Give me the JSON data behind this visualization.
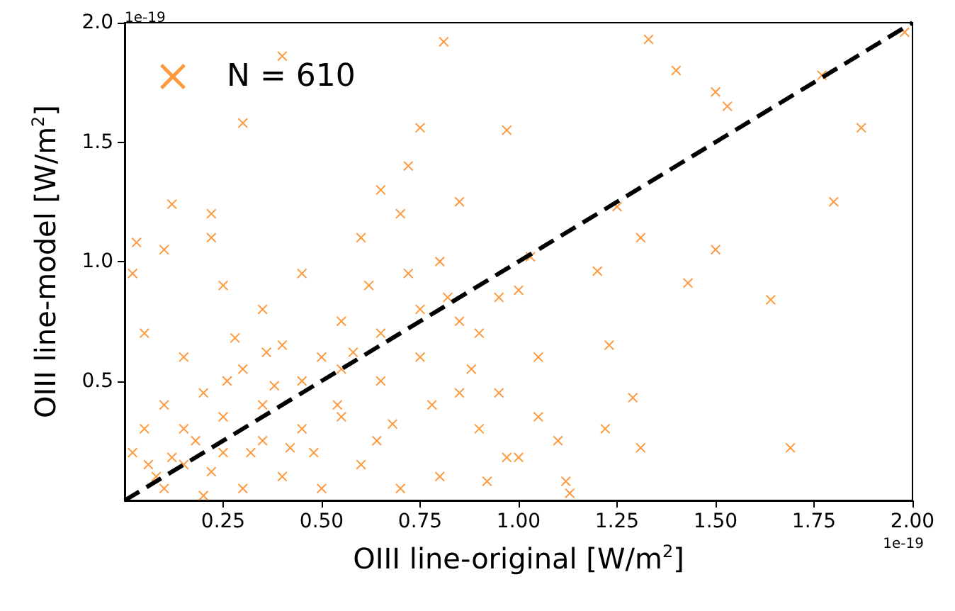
{
  "chart_data": {
    "type": "scatter",
    "xlabel": "OIII line-original [W/m$^{2}$]",
    "ylabel": "OIII line-model [W/m$^{2}$]",
    "annotations": [
      "1e-19",
      "1e-19"
    ],
    "xlim": [
      0,
      2.0
    ],
    "ylim": [
      0,
      2.0
    ],
    "xticks": [
      {
        "value": 0.25,
        "label": "0.25"
      },
      {
        "value": 0.5,
        "label": "0.50"
      },
      {
        "value": 0.75,
        "label": "0.75"
      },
      {
        "value": 1.0,
        "label": "1.00"
      },
      {
        "value": 1.25,
        "label": "1.25"
      },
      {
        "value": 1.5,
        "label": "1.50"
      },
      {
        "value": 1.75,
        "label": "1.75"
      },
      {
        "value": 2.0,
        "label": "2.00"
      }
    ],
    "yticks": [
      0.5,
      {
        "value": 1.0,
        "label": "1.0"
      },
      1.5,
      {
        "value": 2.0,
        "label": "2.0"
      }
    ],
    "grid": false,
    "legend": "top left",
    "marker": "cross",
    "series": [
      {
        "name": "N = 610",
        "color": "#ff7f0e",
        "x": [
          0.81,
          1.33,
          1.4,
          1.5,
          1.53,
          1.77,
          1.98,
          1.87,
          1.8,
          1.69,
          1.64,
          1.5,
          1.43,
          1.31,
          1.25,
          1.2,
          1.23,
          1.29,
          1.31,
          1.22,
          1.12,
          1.13,
          1.1,
          1.05,
          0.97,
          0.9,
          0.85,
          1.0,
          1.03,
          0.97,
          0.75,
          0.65,
          0.72,
          0.4,
          0.3,
          0.22,
          0.12,
          0.03,
          0.02,
          0.1,
          0.22,
          0.25,
          0.35,
          0.45,
          0.6,
          0.7,
          0.8,
          0.85,
          0.95,
          0.55,
          0.5,
          0.4,
          0.3,
          0.2,
          0.1,
          0.05,
          0.02,
          0.08,
          0.15,
          0.25,
          0.35,
          0.45,
          0.55,
          0.65,
          0.75,
          0.85,
          0.6,
          0.7,
          0.8,
          0.9,
          0.5,
          0.4,
          0.3,
          0.2,
          0.1,
          0.15,
          0.25,
          0.35,
          0.45,
          0.55,
          0.65,
          0.75,
          0.05,
          0.15,
          0.28,
          0.38,
          0.48,
          0.58,
          0.68,
          0.78,
          0.88,
          0.95,
          0.18,
          0.12,
          0.22,
          0.32,
          0.42,
          0.06,
          0.26,
          0.36,
          0.62,
          0.72,
          0.82,
          1.0,
          1.05,
          0.92,
          0.64,
          0.54
        ],
        "values": [
          1.92,
          1.93,
          1.8,
          1.71,
          1.65,
          1.78,
          1.96,
          1.56,
          1.25,
          0.22,
          0.84,
          1.05,
          0.91,
          1.1,
          1.23,
          0.96,
          0.65,
          0.43,
          0.22,
          0.3,
          0.08,
          0.03,
          0.25,
          0.6,
          0.18,
          0.7,
          0.45,
          0.88,
          1.02,
          1.55,
          1.56,
          1.3,
          1.4,
          1.86,
          1.58,
          1.2,
          1.24,
          1.08,
          0.95,
          1.05,
          1.1,
          0.9,
          0.8,
          0.95,
          1.1,
          1.2,
          1.0,
          1.25,
          0.85,
          0.75,
          0.6,
          0.65,
          0.55,
          0.45,
          0.4,
          0.3,
          0.2,
          0.1,
          0.15,
          0.2,
          0.25,
          0.3,
          0.35,
          0.5,
          0.6,
          0.75,
          0.15,
          0.05,
          0.1,
          0.3,
          0.05,
          0.1,
          0.05,
          0.02,
          0.05,
          0.3,
          0.35,
          0.4,
          0.5,
          0.55,
          0.7,
          0.8,
          0.7,
          0.6,
          0.68,
          0.48,
          0.2,
          0.62,
          0.32,
          0.4,
          0.55,
          0.45,
          0.25,
          0.18,
          0.12,
          0.2,
          0.22,
          0.15,
          0.5,
          0.62,
          0.9,
          0.95,
          0.85,
          0.18,
          0.35,
          0.08,
          0.25,
          0.4
        ]
      },
      {
        "type": "line",
        "color": "#000000",
        "line_style": "dashed",
        "marker": "none",
        "x": [
          0,
          2.0
        ],
        "values": [
          0,
          2.0
        ]
      }
    ]
  }
}
